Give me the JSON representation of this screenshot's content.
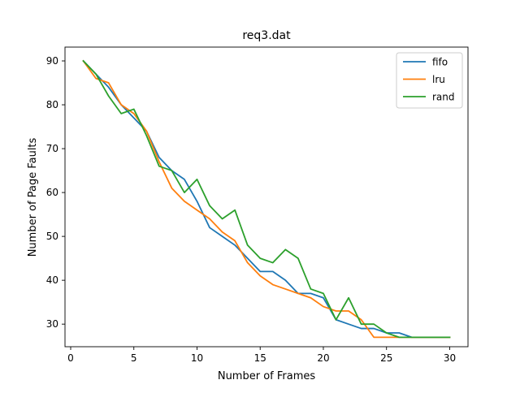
{
  "chart_data": {
    "type": "line",
    "title": "req3.dat",
    "xlabel": "Number of Frames",
    "ylabel": "Number of Page Faults",
    "xlim": [
      -0.45,
      31.45
    ],
    "ylim": [
      24.85,
      93.15
    ],
    "xticks": [
      0,
      5,
      10,
      15,
      20,
      25,
      30
    ],
    "yticks": [
      30,
      40,
      50,
      60,
      70,
      80,
      90
    ],
    "grid": false,
    "legend_position": "top-right",
    "x": [
      1,
      2,
      3,
      4,
      5,
      6,
      7,
      8,
      9,
      10,
      11,
      12,
      13,
      14,
      15,
      16,
      17,
      18,
      19,
      20,
      21,
      22,
      23,
      24,
      25,
      26,
      27,
      28,
      29,
      30
    ],
    "series": [
      {
        "name": "fifo",
        "color": "#1f77b4",
        "values": [
          90,
          87,
          84,
          80,
          77,
          74,
          68,
          65,
          63,
          58,
          52,
          50,
          48,
          45,
          42,
          42,
          40,
          37,
          37,
          36,
          31,
          30,
          29,
          29,
          28,
          28,
          27,
          27,
          27,
          27
        ]
      },
      {
        "name": "lru",
        "color": "#ff7f0e",
        "values": [
          90,
          86,
          85,
          80,
          78,
          74,
          67,
          61,
          58,
          56,
          54,
          51,
          49,
          44,
          41,
          39,
          38,
          37,
          36,
          34,
          33,
          33,
          31,
          27,
          27,
          27,
          27,
          27,
          27,
          27
        ]
      },
      {
        "name": "rand",
        "color": "#2ca02c",
        "values": [
          90,
          87,
          82,
          78,
          79,
          73,
          66,
          65,
          60,
          63,
          57,
          54,
          56,
          48,
          45,
          44,
          47,
          45,
          38,
          37,
          31,
          36,
          30,
          30,
          28,
          27,
          27,
          27,
          27,
          27
        ]
      }
    ]
  }
}
